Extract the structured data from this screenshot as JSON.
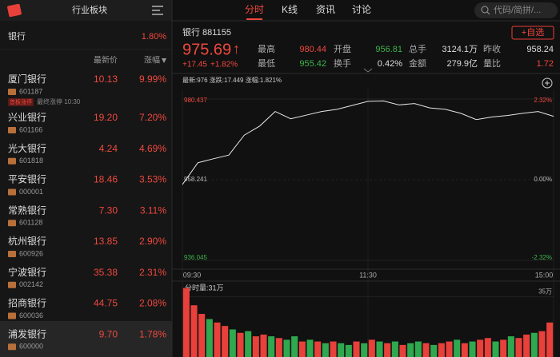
{
  "top_bar": {
    "title": "行业板块",
    "tabs": [
      "分时",
      "K线",
      "资讯",
      "讨论"
    ],
    "search_placeholder": "代码/简拼/..."
  },
  "sidebar": {
    "sector_name": "银行",
    "sector_change": "1.80%",
    "col_price": "最新价",
    "col_change": "涨幅",
    "rows": [
      {
        "name": "厦门银行",
        "code": "601187",
        "price": "10.13",
        "change": "9.99%",
        "tag": "首板涨停",
        "note": "最终涨停 10:30"
      },
      {
        "name": "兴业银行",
        "code": "601166",
        "price": "19.20",
        "change": "7.20%"
      },
      {
        "name": "光大银行",
        "code": "601818",
        "price": "4.24",
        "change": "4.69%"
      },
      {
        "name": "平安银行",
        "code": "000001",
        "price": "18.46",
        "change": "3.53%"
      },
      {
        "name": "常熟银行",
        "code": "601128",
        "price": "7.30",
        "change": "3.11%"
      },
      {
        "name": "杭州银行",
        "code": "600926",
        "price": "13.85",
        "change": "2.90%"
      },
      {
        "name": "宁波银行",
        "code": "002142",
        "price": "35.38",
        "change": "2.31%"
      },
      {
        "name": "招商银行",
        "code": "600036",
        "price": "44.75",
        "change": "2.08%"
      },
      {
        "name": "浦发银行",
        "code": "600000",
        "price": "9.70",
        "change": "1.78%"
      }
    ]
  },
  "quote": {
    "name": "银行 881155",
    "add_button": "+自选",
    "price": "975.69",
    "arrow": "↑",
    "change": "+17.45",
    "change_pct": "+1.82%",
    "stats": [
      {
        "label": "最高",
        "value": "980.44",
        "color": "#f0483e"
      },
      {
        "label": "开盘",
        "value": "956.81",
        "color": "#3cb44b"
      },
      {
        "label": "总手",
        "value": "3124.1万",
        "color": "#dddddd"
      },
      {
        "label": "昨收",
        "value": "958.24",
        "color": "#dddddd"
      },
      {
        "label": "最低",
        "value": "955.42",
        "color": "#3cb44b"
      },
      {
        "label": "换手",
        "value": "0.42%",
        "color": "#dddddd"
      },
      {
        "label": "金额",
        "value": "279.9亿",
        "color": "#dddddd"
      },
      {
        "label": "量比",
        "value": "1.72",
        "color": "#f0483e"
      }
    ]
  },
  "intraday": {
    "header": "最新:976 涨跌:17.449 涨幅:1.821%",
    "ylim": [
      936.045,
      980.437
    ],
    "yticks": [
      936.045,
      958.241,
      980.437
    ],
    "pct_labels": [
      "-2.32%",
      "0.00%",
      "2.32%"
    ],
    "xlim": [
      0,
      240
    ],
    "xticks": [
      {
        "value": 0,
        "label": "09:30"
      },
      {
        "value": 120,
        "label": "11:30"
      },
      {
        "value": 240,
        "label": "15:00"
      }
    ],
    "price": {
      "color": "#e6e6e6",
      "x": [
        0,
        10,
        20,
        30,
        40,
        50,
        60,
        70,
        80,
        90,
        100,
        110,
        120,
        130,
        140,
        150,
        160,
        170,
        180,
        190,
        200,
        210,
        220,
        230,
        240
      ],
      "values": [
        956.9,
        962.9,
        964,
        965,
        970.5,
        973,
        977,
        975,
        976,
        977,
        977.6,
        978.7,
        979.8,
        979.9,
        978.8,
        979.2,
        978,
        977.6,
        976.5,
        974.8,
        975.5,
        975.9,
        976.5,
        977,
        975.69
      ]
    },
    "volume": {
      "label": "分时量:31万",
      "scale_label": "35万",
      "scale_value": 35,
      "ylim": [
        0,
        44
      ],
      "values": [
        40,
        30,
        25,
        22,
        20,
        18,
        16,
        14,
        15,
        12,
        13,
        12,
        11,
        10,
        12,
        9,
        10,
        9,
        8,
        9,
        8,
        7,
        9,
        8,
        10,
        9,
        8,
        9,
        7,
        8,
        9,
        8,
        7,
        8,
        9,
        10,
        8,
        9,
        10,
        11,
        9,
        10,
        12,
        11,
        13,
        14,
        15,
        20
      ],
      "colors": [
        "#e8403a",
        "#e8403a",
        "#e8403a",
        "#2fa84f",
        "#e8403a",
        "#e8403a",
        "#2fa84f",
        "#e8403a",
        "#2fa84f",
        "#e8403a",
        "#e8403a",
        "#2fa84f",
        "#e8403a",
        "#2fa84f",
        "#2fa84f",
        "#e8403a",
        "#2fa84f",
        "#e8403a",
        "#2fa84f",
        "#e8403a",
        "#2fa84f",
        "#2fa84f",
        "#e8403a",
        "#2fa84f",
        "#e8403a",
        "#2fa84f",
        "#e8403a",
        "#2fa84f",
        "#e8403a",
        "#2fa84f",
        "#2fa84f",
        "#e8403a",
        "#2fa84f",
        "#e8403a",
        "#e8403a",
        "#2fa84f",
        "#e8403a",
        "#2fa84f",
        "#e8403a",
        "#e8403a",
        "#2fa84f",
        "#e8403a",
        "#2fa84f",
        "#e8403a",
        "#e8403a",
        "#2fa84f",
        "#e8403a",
        "#e8403a"
      ]
    }
  }
}
